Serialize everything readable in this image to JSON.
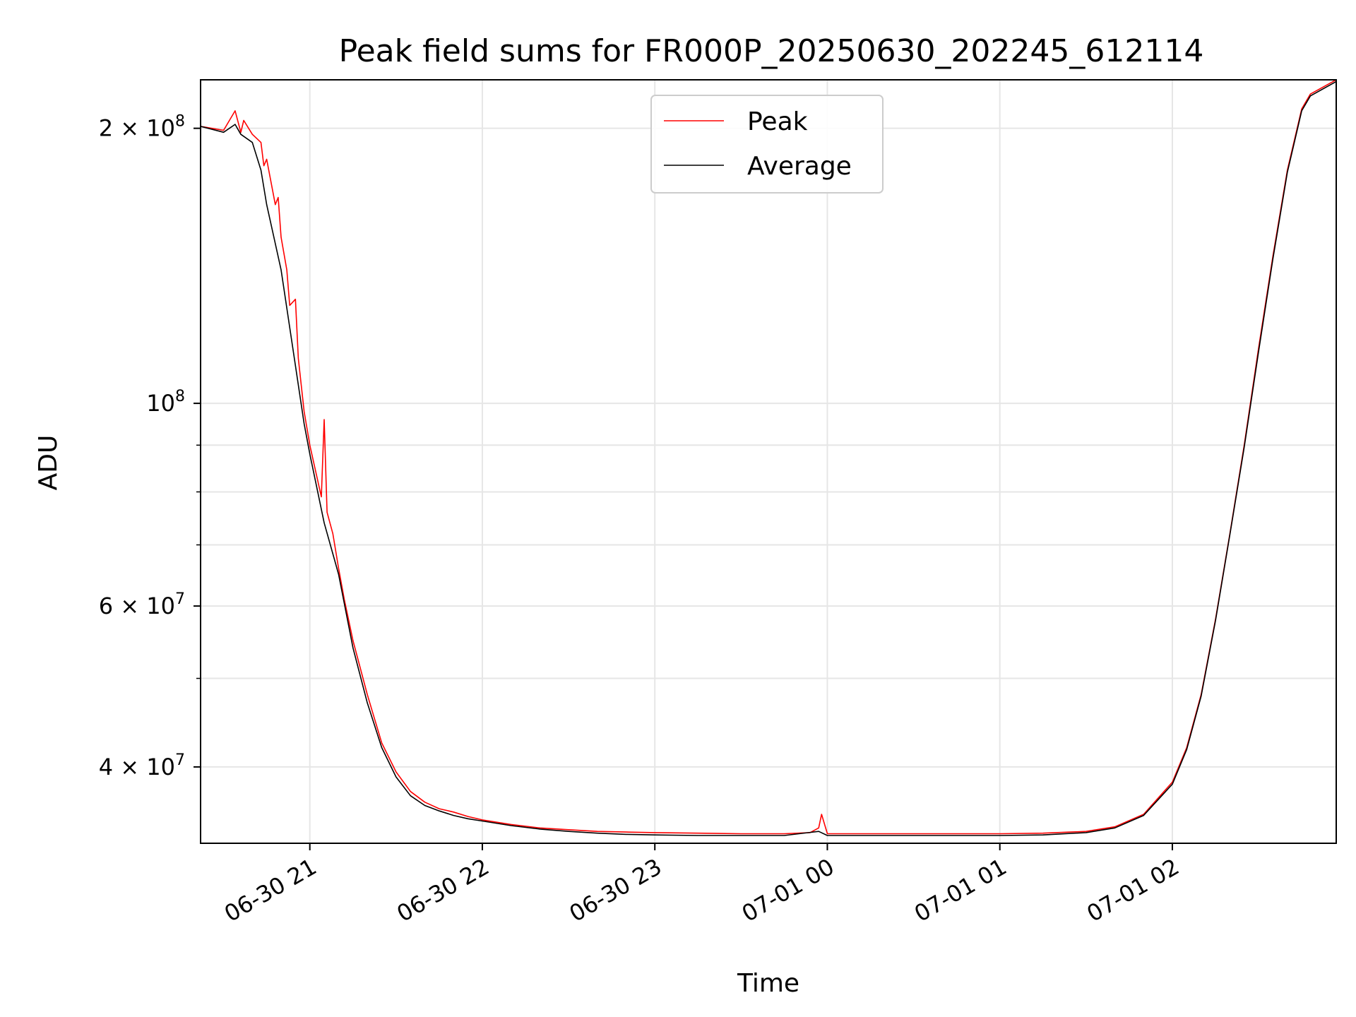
{
  "chart_data": {
    "type": "line",
    "title": "Peak field sums for FR000P_20250630_202245_612114",
    "xlabel": "Time",
    "ylabel": "ADU",
    "y_scale": "log",
    "ylim": [
      33000000,
      226000000
    ],
    "xlim": [
      "2025-06-30 20:22",
      "2025-07-01 02:57"
    ],
    "grid": true,
    "legend": {
      "placement": "top-center",
      "entries": [
        "Peak",
        "Average"
      ]
    },
    "x_ticks": [
      {
        "label": "06-30 21",
        "value": "2025-06-30 21:00"
      },
      {
        "label": "06-30 22",
        "value": "2025-06-30 22:00"
      },
      {
        "label": "06-30 23",
        "value": "2025-06-30 23:00"
      },
      {
        "label": "07-01 00",
        "value": "2025-07-01 00:00"
      },
      {
        "label": "07-01 01",
        "value": "2025-07-01 01:00"
      },
      {
        "label": "07-01 02",
        "value": "2025-07-01 02:00"
      }
    ],
    "y_major_ticks": [
      {
        "mant": "4",
        "exp": "7",
        "value": 40000000
      },
      {
        "mant": "6",
        "exp": "7",
        "value": 60000000
      },
      {
        "mant": "",
        "exp": "8",
        "value": 100000000
      },
      {
        "mant": "2",
        "exp": "8",
        "value": 200000000
      }
    ],
    "y_minor_ticks": [
      50000000,
      70000000,
      80000000,
      90000000
    ],
    "series": [
      {
        "name": "Peak",
        "color": "#ff0000",
        "x": [
          "2025-06-30 20:22",
          "2025-06-30 20:30",
          "2025-06-30 20:34",
          "2025-06-30 20:36",
          "2025-06-30 20:37",
          "2025-06-30 20:40",
          "2025-06-30 20:43",
          "2025-06-30 20:44",
          "2025-06-30 20:45",
          "2025-06-30 20:48",
          "2025-06-30 20:49",
          "2025-06-30 20:50",
          "2025-06-30 20:52",
          "2025-06-30 20:53",
          "2025-06-30 20:55",
          "2025-06-30 20:56",
          "2025-06-30 20:58",
          "2025-06-30 21:00",
          "2025-06-30 21:04",
          "2025-06-30 21:05",
          "2025-06-30 21:06",
          "2025-06-30 21:08",
          "2025-06-30 21:10",
          "2025-06-30 21:12",
          "2025-06-30 21:15",
          "2025-06-30 21:20",
          "2025-06-30 21:25",
          "2025-06-30 21:30",
          "2025-06-30 21:35",
          "2025-06-30 21:40",
          "2025-06-30 21:45",
          "2025-06-30 21:50",
          "2025-06-30 21:55",
          "2025-06-30 22:00",
          "2025-06-30 22:10",
          "2025-06-30 22:20",
          "2025-06-30 22:30",
          "2025-06-30 22:40",
          "2025-06-30 22:50",
          "2025-06-30 23:00",
          "2025-06-30 23:15",
          "2025-06-30 23:30",
          "2025-06-30 23:45",
          "2025-06-30 23:54",
          "2025-06-30 23:57",
          "2025-06-30 23:58",
          "2025-07-01 00:00",
          "2025-07-01 00:15",
          "2025-07-01 00:30",
          "2025-07-01 00:45",
          "2025-07-01 01:00",
          "2025-07-01 01:15",
          "2025-07-01 01:30",
          "2025-07-01 01:40",
          "2025-07-01 01:50",
          "2025-07-01 02:00",
          "2025-07-01 02:05",
          "2025-07-01 02:10",
          "2025-07-01 02:15",
          "2025-07-01 02:20",
          "2025-07-01 02:25",
          "2025-07-01 02:30",
          "2025-07-01 02:35",
          "2025-07-01 02:40",
          "2025-07-01 02:45",
          "2025-07-01 02:48",
          "2025-07-01 02:57"
        ],
        "y": [
          201000000,
          199000000,
          209000000,
          198000000,
          204000000,
          197000000,
          193000000,
          182000000,
          185000000,
          165000000,
          168000000,
          152000000,
          140000000,
          128000000,
          130000000,
          112000000,
          98000000,
          90000000,
          79000000,
          96000000,
          76000000,
          72000000,
          66000000,
          61000000,
          55000000,
          48000000,
          42500000,
          39500000,
          37600000,
          36600000,
          36000000,
          35700000,
          35300000,
          35000000,
          34600000,
          34300000,
          34150000,
          34000000,
          33950000,
          33900000,
          33850000,
          33800000,
          33800000,
          33900000,
          34300000,
          35500000,
          33800000,
          33800000,
          33800000,
          33800000,
          33800000,
          33850000,
          34000000,
          34400000,
          35500000,
          38500000,
          42000000,
          48000000,
          58000000,
          72000000,
          90000000,
          115000000,
          145000000,
          180000000,
          210000000,
          218000000,
          226000000
        ]
      },
      {
        "name": "Average",
        "color": "#000000",
        "x": [
          "2025-06-30 20:22",
          "2025-06-30 20:30",
          "2025-06-30 20:34",
          "2025-06-30 20:36",
          "2025-06-30 20:40",
          "2025-06-30 20:43",
          "2025-06-30 20:45",
          "2025-06-30 20:50",
          "2025-06-30 20:55",
          "2025-06-30 20:58",
          "2025-06-30 21:00",
          "2025-06-30 21:05",
          "2025-06-30 21:10",
          "2025-06-30 21:15",
          "2025-06-30 21:20",
          "2025-06-30 21:25",
          "2025-06-30 21:30",
          "2025-06-30 21:35",
          "2025-06-30 21:40",
          "2025-06-30 21:45",
          "2025-06-30 21:50",
          "2025-06-30 21:55",
          "2025-06-30 22:00",
          "2025-06-30 22:10",
          "2025-06-30 22:20",
          "2025-06-30 22:30",
          "2025-06-30 22:40",
          "2025-06-30 22:50",
          "2025-06-30 23:00",
          "2025-06-30 23:15",
          "2025-06-30 23:30",
          "2025-06-30 23:45",
          "2025-06-30 23:57",
          "2025-07-01 00:00",
          "2025-07-01 00:15",
          "2025-07-01 00:30",
          "2025-07-01 00:45",
          "2025-07-01 01:00",
          "2025-07-01 01:15",
          "2025-07-01 01:30",
          "2025-07-01 01:40",
          "2025-07-01 01:50",
          "2025-07-01 02:00",
          "2025-07-01 02:05",
          "2025-07-01 02:10",
          "2025-07-01 02:15",
          "2025-07-01 02:20",
          "2025-07-01 02:25",
          "2025-07-01 02:30",
          "2025-07-01 02:35",
          "2025-07-01 02:40",
          "2025-07-01 02:45",
          "2025-07-01 02:48",
          "2025-07-01 02:57"
        ],
        "y": [
          201000000,
          198000000,
          202000000,
          197000000,
          193000000,
          180000000,
          165000000,
          140000000,
          110000000,
          95000000,
          88000000,
          74000000,
          65000000,
          54000000,
          47000000,
          42000000,
          39000000,
          37200000,
          36300000,
          35800000,
          35400000,
          35100000,
          34900000,
          34500000,
          34200000,
          34000000,
          33850000,
          33750000,
          33700000,
          33650000,
          33650000,
          33650000,
          34000000,
          33650000,
          33650000,
          33650000,
          33650000,
          33650000,
          33700000,
          33900000,
          34300000,
          35400000,
          38300000,
          41800000,
          47800000,
          57800000,
          71800000,
          89500000,
          114000000,
          144000000,
          179000000,
          209000000,
          217000000,
          225000000
        ]
      }
    ]
  }
}
